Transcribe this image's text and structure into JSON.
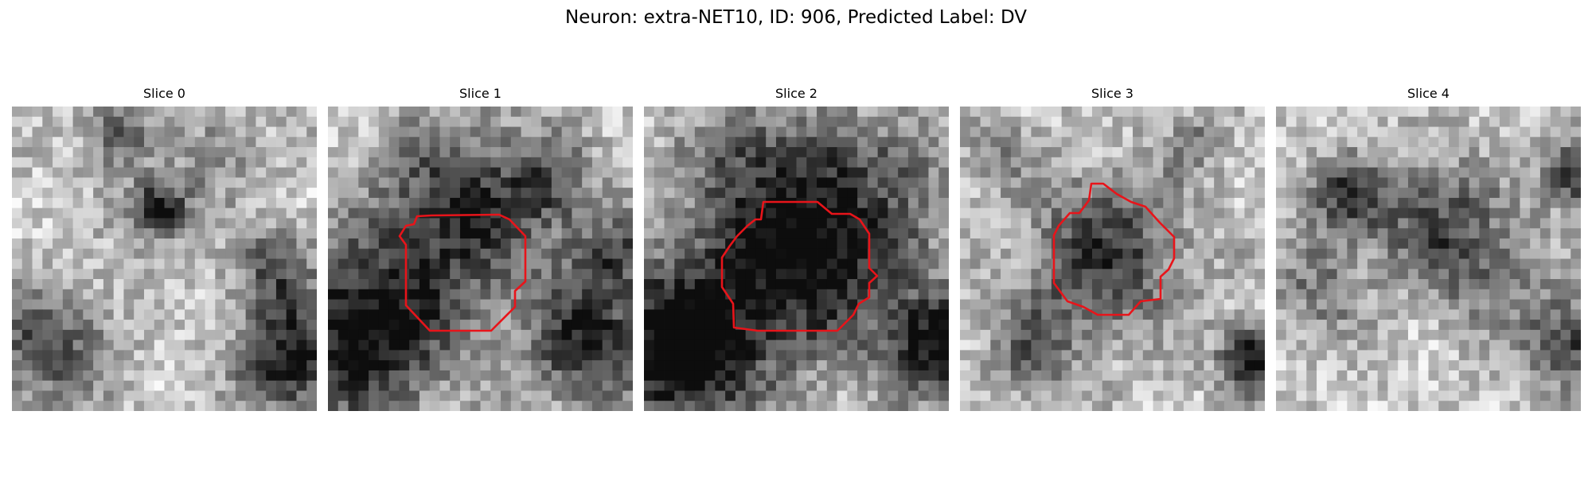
{
  "figure": {
    "title": "Neuron: extra-NET10, ID: 906, Predicted Label: DV",
    "contour_color": "#e8141a",
    "image_colormap": "gray"
  },
  "slices": [
    {
      "label": "Slice 0",
      "has_contour": false
    },
    {
      "label": "Slice 1",
      "has_contour": true
    },
    {
      "label": "Slice 2",
      "has_contour": true
    },
    {
      "label": "Slice 3",
      "has_contour": true
    },
    {
      "label": "Slice 4",
      "has_contour": false
    }
  ]
}
